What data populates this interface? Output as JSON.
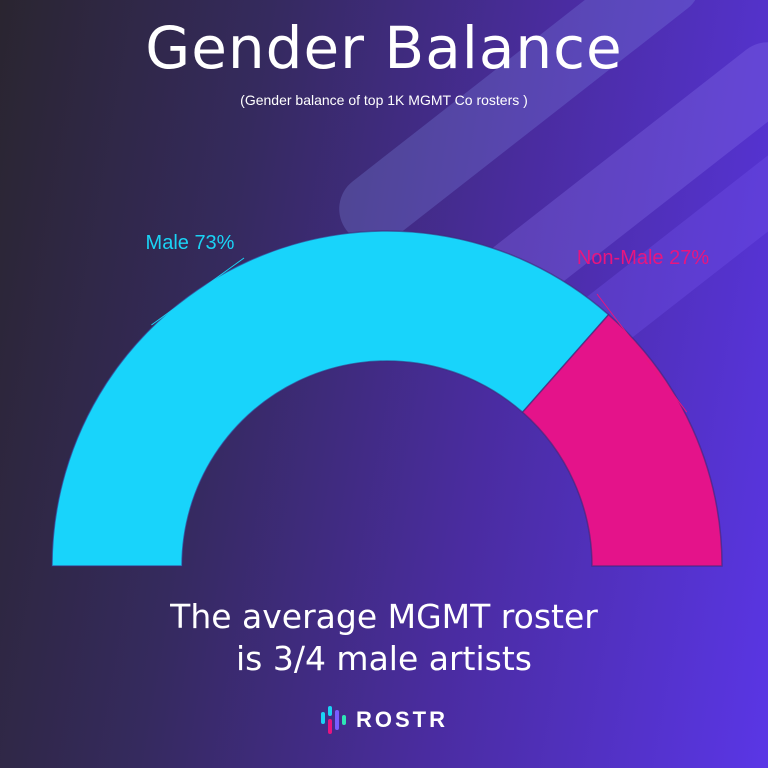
{
  "title": "Gender Balance",
  "subtitle": "(Gender balance of top 1K MGMT Co rosters )",
  "caption": {
    "line1": "The average MGMT roster",
    "line2": "is 3/4 male artists"
  },
  "brand": {
    "name": "ROSTR",
    "logo_icon": "rostr-bars-logo",
    "logo_colors": [
      "#1ad3f5",
      "#e8157f",
      "#7a5cff",
      "#2ee6b5"
    ]
  },
  "chart_data": {
    "type": "pie",
    "subtype": "half-donut",
    "categories": [
      "Male",
      "Non-Male"
    ],
    "values": [
      73,
      27
    ],
    "labels": [
      "Male 73%",
      "Non-Male 27%"
    ],
    "colors": [
      "#18d4fb",
      "#e4138a"
    ],
    "label_colors": [
      "#1ad3f5",
      "#e8157f"
    ]
  }
}
